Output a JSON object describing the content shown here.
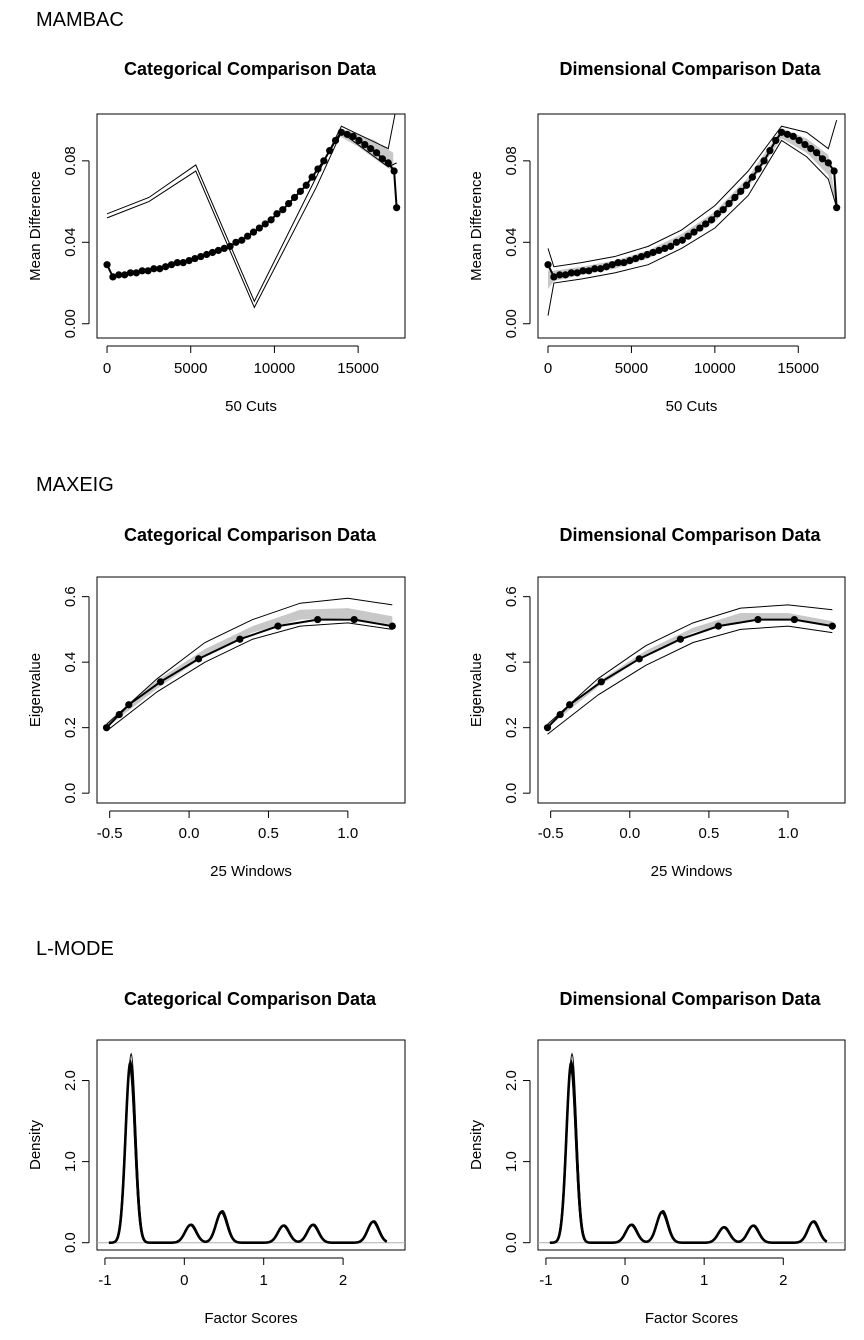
{
  "sections": [
    {
      "title": "MAMBAC"
    },
    {
      "title": "MAXEIG"
    },
    {
      "title": "L-MODE"
    }
  ],
  "chart_data": [
    {
      "type": "line",
      "section": "MAMBAC",
      "title": "Categorical Comparison Data",
      "xlabel": "50 Cuts",
      "ylabel": "Mean Difference",
      "xlim": [
        -600,
        17800
      ],
      "ylim": [
        -0.007,
        0.103
      ],
      "xticks": [
        0,
        5000,
        10000,
        15000
      ],
      "xtick_labels": [
        "0",
        "5000",
        "10000",
        "15000"
      ],
      "yticks": [
        0.0,
        0.04,
        0.08
      ],
      "ytick_labels": [
        "0.00",
        "0.04",
        "0.08"
      ],
      "points": true,
      "band": {
        "x": [
          13900,
          15000,
          16000,
          16700,
          17100
        ],
        "lower": [
          0.092,
          0.087,
          0.081,
          0.077,
          0.075
        ],
        "upper": [
          0.096,
          0.093,
          0.09,
          0.086,
          0.084
        ]
      },
      "series": [
        {
          "role": "observed",
          "x": [
            0,
            350,
            700,
            1050,
            1400,
            1750,
            2100,
            2450,
            2800,
            3150,
            3500,
            3850,
            4200,
            4550,
            4900,
            5250,
            5600,
            5950,
            6300,
            6650,
            7000,
            7350,
            7700,
            8050,
            8400,
            8750,
            9100,
            9450,
            9800,
            10150,
            10500,
            10850,
            11200,
            11550,
            11900,
            12250,
            12600,
            12950,
            13300,
            13650,
            14000,
            14350,
            14700,
            15050,
            15400,
            15750,
            16100,
            16450,
            16800,
            17150,
            17300
          ],
          "y": [
            0.029,
            0.023,
            0.024,
            0.024,
            0.025,
            0.025,
            0.026,
            0.026,
            0.027,
            0.027,
            0.028,
            0.029,
            0.03,
            0.03,
            0.031,
            0.032,
            0.033,
            0.034,
            0.035,
            0.036,
            0.037,
            0.038,
            0.04,
            0.041,
            0.043,
            0.045,
            0.047,
            0.049,
            0.051,
            0.054,
            0.056,
            0.059,
            0.062,
            0.065,
            0.068,
            0.072,
            0.076,
            0.08,
            0.085,
            0.09,
            0.094,
            0.093,
            0.092,
            0.09,
            0.088,
            0.086,
            0.084,
            0.081,
            0.079,
            0.075,
            0.057
          ]
        },
        {
          "role": "comparison-upper",
          "x": [
            0,
            2500,
            5300,
            8800,
            12500,
            14000,
            16800,
            17300
          ],
          "y": [
            0.054,
            0.062,
            0.078,
            0.011,
            0.072,
            0.097,
            0.086,
            0.107
          ]
        },
        {
          "role": "comparison-lower",
          "x": [
            0,
            2500,
            5300,
            8800,
            12500,
            14000,
            16800,
            17300
          ],
          "y": [
            0.052,
            0.06,
            0.075,
            0.008,
            0.067,
            0.094,
            0.077,
            0.079
          ]
        }
      ]
    },
    {
      "type": "line",
      "section": "MAMBAC",
      "title": "Dimensional Comparison Data",
      "xlabel": "50 Cuts",
      "ylabel": "Mean Difference",
      "xlim": [
        -600,
        17800
      ],
      "ylim": [
        -0.007,
        0.103
      ],
      "xticks": [
        0,
        5000,
        10000,
        15000
      ],
      "xtick_labels": [
        "0",
        "5000",
        "10000",
        "15000"
      ],
      "yticks": [
        0.0,
        0.04,
        0.08
      ],
      "ytick_labels": [
        "0.00",
        "0.04",
        "0.08"
      ],
      "points": true,
      "band": {
        "x": [
          0,
          350,
          2000,
          4000,
          6000,
          8000,
          10000,
          12000,
          14000,
          15500,
          16800,
          17300
        ],
        "lower": [
          0.017,
          0.021,
          0.024,
          0.027,
          0.032,
          0.04,
          0.05,
          0.067,
          0.091,
          0.084,
          0.073,
          0.057
        ],
        "upper": [
          0.026,
          0.026,
          0.028,
          0.031,
          0.036,
          0.044,
          0.055,
          0.072,
          0.096,
          0.091,
          0.083,
          0.058
        ]
      },
      "series": [
        {
          "role": "observed",
          "x": [
            0,
            350,
            700,
            1050,
            1400,
            1750,
            2100,
            2450,
            2800,
            3150,
            3500,
            3850,
            4200,
            4550,
            4900,
            5250,
            5600,
            5950,
            6300,
            6650,
            7000,
            7350,
            7700,
            8050,
            8400,
            8750,
            9100,
            9450,
            9800,
            10150,
            10500,
            10850,
            11200,
            11550,
            11900,
            12250,
            12600,
            12950,
            13300,
            13650,
            14000,
            14350,
            14700,
            15050,
            15400,
            15750,
            16100,
            16450,
            16800,
            17150,
            17300
          ],
          "y": [
            0.029,
            0.023,
            0.024,
            0.024,
            0.025,
            0.025,
            0.026,
            0.026,
            0.027,
            0.027,
            0.028,
            0.029,
            0.03,
            0.03,
            0.031,
            0.032,
            0.033,
            0.034,
            0.035,
            0.036,
            0.037,
            0.038,
            0.04,
            0.041,
            0.043,
            0.045,
            0.047,
            0.049,
            0.051,
            0.054,
            0.056,
            0.059,
            0.062,
            0.065,
            0.068,
            0.072,
            0.076,
            0.08,
            0.085,
            0.09,
            0.094,
            0.093,
            0.092,
            0.09,
            0.088,
            0.086,
            0.084,
            0.081,
            0.079,
            0.075,
            0.057
          ]
        },
        {
          "role": "comparison-upper",
          "x": [
            0,
            350,
            2000,
            4000,
            6000,
            8000,
            10000,
            12000,
            14000,
            15500,
            16800,
            17300
          ],
          "y": [
            0.037,
            0.028,
            0.03,
            0.033,
            0.038,
            0.046,
            0.058,
            0.075,
            0.097,
            0.094,
            0.086,
            0.1
          ]
        },
        {
          "role": "comparison-lower",
          "x": [
            0,
            350,
            2000,
            4000,
            6000,
            8000,
            10000,
            12000,
            14000,
            15500,
            16800,
            17300
          ],
          "y": [
            0.004,
            0.02,
            0.022,
            0.025,
            0.029,
            0.037,
            0.047,
            0.063,
            0.09,
            0.082,
            0.071,
            0.057
          ]
        }
      ]
    },
    {
      "type": "line",
      "section": "MAXEIG",
      "title": "Categorical Comparison Data",
      "xlabel": "25 Windows",
      "ylabel": "Eigenvalue",
      "xlim": [
        -0.58,
        1.36
      ],
      "ylim": [
        -0.03,
        0.66
      ],
      "xticks": [
        -0.5,
        0.0,
        0.5,
        1.0
      ],
      "xtick_labels": [
        "-0.5",
        "0.0",
        "0.5",
        "1.0"
      ],
      "yticks": [
        0.0,
        0.2,
        0.4,
        0.6
      ],
      "ytick_labels": [
        "0.0",
        "0.2",
        "0.4",
        "0.6"
      ],
      "points": true,
      "band": {
        "x": [
          -0.52,
          -0.2,
          0.1,
          0.4,
          0.7,
          1.0,
          1.28
        ],
        "lower": [
          0.2,
          0.32,
          0.42,
          0.49,
          0.53,
          0.535,
          0.515
        ],
        "upper": [
          0.215,
          0.345,
          0.44,
          0.51,
          0.56,
          0.565,
          0.54
        ]
      },
      "series": [
        {
          "role": "observed",
          "x": [
            -0.52,
            -0.44,
            -0.38,
            -0.18,
            0.06,
            0.32,
            0.56,
            0.81,
            1.04,
            1.28
          ],
          "y": [
            0.2,
            0.24,
            0.27,
            0.34,
            0.41,
            0.47,
            0.51,
            0.53,
            0.53,
            0.51
          ]
        },
        {
          "role": "comparison-upper",
          "x": [
            -0.52,
            -0.2,
            0.1,
            0.4,
            0.7,
            1.0,
            1.28
          ],
          "y": [
            0.21,
            0.35,
            0.46,
            0.53,
            0.58,
            0.595,
            0.575
          ]
        },
        {
          "role": "comparison-lower",
          "x": [
            -0.52,
            -0.2,
            0.1,
            0.4,
            0.7,
            1.0,
            1.28
          ],
          "y": [
            0.19,
            0.31,
            0.4,
            0.47,
            0.51,
            0.52,
            0.5
          ]
        }
      ]
    },
    {
      "type": "line",
      "section": "MAXEIG",
      "title": "Dimensional Comparison Data",
      "xlabel": "25 Windows",
      "ylabel": "Eigenvalue",
      "xlim": [
        -0.58,
        1.36
      ],
      "ylim": [
        -0.03,
        0.66
      ],
      "xticks": [
        -0.5,
        0.0,
        0.5,
        1.0
      ],
      "xtick_labels": [
        "-0.5",
        "0.0",
        "0.5",
        "1.0"
      ],
      "yticks": [
        0.0,
        0.2,
        0.4,
        0.6
      ],
      "ytick_labels": [
        "0.0",
        "0.2",
        "0.4",
        "0.6"
      ],
      "points": true,
      "band": {
        "x": [
          -0.52,
          -0.2,
          0.1,
          0.4,
          0.7,
          1.0,
          1.28
        ],
        "lower": [
          0.2,
          0.325,
          0.42,
          0.49,
          0.525,
          0.53,
          0.51
        ],
        "upper": [
          0.21,
          0.34,
          0.435,
          0.505,
          0.55,
          0.55,
          0.525
        ]
      },
      "series": [
        {
          "role": "observed",
          "x": [
            -0.52,
            -0.44,
            -0.38,
            -0.18,
            0.06,
            0.32,
            0.56,
            0.81,
            1.04,
            1.28
          ],
          "y": [
            0.2,
            0.24,
            0.27,
            0.34,
            0.41,
            0.47,
            0.51,
            0.53,
            0.53,
            0.51
          ]
        },
        {
          "role": "comparison-upper",
          "x": [
            -0.52,
            -0.2,
            0.1,
            0.4,
            0.7,
            1.0,
            1.28
          ],
          "y": [
            0.21,
            0.35,
            0.45,
            0.52,
            0.565,
            0.575,
            0.56
          ]
        },
        {
          "role": "comparison-lower",
          "x": [
            -0.52,
            -0.2,
            0.1,
            0.4,
            0.7,
            1.0,
            1.28
          ],
          "y": [
            0.18,
            0.3,
            0.39,
            0.46,
            0.5,
            0.51,
            0.49
          ]
        }
      ]
    },
    {
      "type": "line",
      "section": "L-MODE",
      "title": "Categorical Comparison Data",
      "xlabel": "Factor Scores",
      "ylabel": "Density",
      "xlim": [
        -1.1,
        2.78
      ],
      "ylim": [
        -0.09,
        2.5
      ],
      "xticks": [
        -1,
        0,
        1,
        2
      ],
      "xtick_labels": [
        "-1",
        "0",
        "1",
        "2"
      ],
      "yticks": [
        0.0,
        1.0,
        2.0
      ],
      "ytick_labels": [
        "0.0",
        "1.0",
        "2.0"
      ],
      "points": false,
      "baseline": 0,
      "peaks": [
        {
          "center": -0.68,
          "height": 2.22,
          "width": 0.06
        },
        {
          "center": 0.08,
          "height": 0.22,
          "width": 0.07
        },
        {
          "center": 0.47,
          "height": 0.38,
          "width": 0.07
        },
        {
          "center": 1.25,
          "height": 0.21,
          "width": 0.07
        },
        {
          "center": 1.62,
          "height": 0.22,
          "width": 0.07
        },
        {
          "center": 2.38,
          "height": 0.26,
          "width": 0.07
        }
      ],
      "x_range": [
        -0.95,
        2.55
      ]
    },
    {
      "type": "line",
      "section": "L-MODE",
      "title": "Dimensional Comparison Data",
      "xlabel": "Factor Scores",
      "ylabel": "Density",
      "xlim": [
        -1.1,
        2.78
      ],
      "ylim": [
        -0.09,
        2.5
      ],
      "xticks": [
        -1,
        0,
        1,
        2
      ],
      "xtick_labels": [
        "-1",
        "0",
        "1",
        "2"
      ],
      "yticks": [
        0.0,
        1.0,
        2.0
      ],
      "ytick_labels": [
        "0.0",
        "1.0",
        "2.0"
      ],
      "points": false,
      "baseline": 0,
      "peaks": [
        {
          "center": -0.68,
          "height": 2.22,
          "width": 0.06
        },
        {
          "center": 0.08,
          "height": 0.22,
          "width": 0.07
        },
        {
          "center": 0.47,
          "height": 0.38,
          "width": 0.07
        },
        {
          "center": 1.25,
          "height": 0.19,
          "width": 0.07
        },
        {
          "center": 1.62,
          "height": 0.21,
          "width": 0.07
        },
        {
          "center": 2.38,
          "height": 0.26,
          "width": 0.07
        }
      ],
      "x_range": [
        -0.95,
        2.55
      ]
    }
  ]
}
